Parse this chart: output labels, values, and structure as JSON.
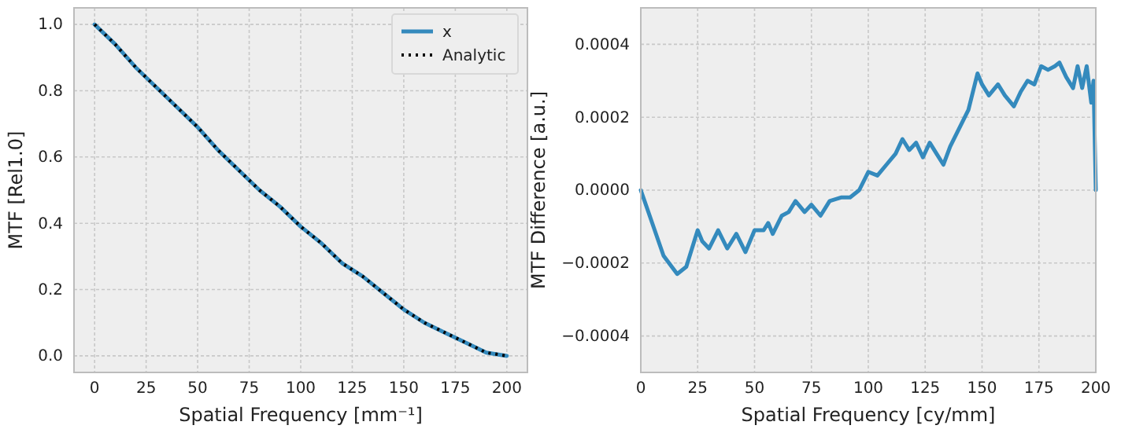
{
  "chart_data": [
    {
      "type": "line",
      "xlabel": "Spatial Frequency [mm⁻¹]",
      "ylabel": "MTF [Rel1.0]",
      "xlim": [
        -10,
        210
      ],
      "ylim": [
        -0.05,
        1.05
      ],
      "xticks": [
        0,
        25,
        50,
        75,
        100,
        125,
        150,
        175,
        200
      ],
      "yticks": [
        {
          "value": 0,
          "label": "0.0"
        },
        {
          "value": 0.2,
          "label": "0.2"
        },
        {
          "value": 0.4,
          "label": "0.4"
        },
        {
          "value": 0.6,
          "label": "0.6"
        },
        {
          "value": 0.8,
          "label": "0.8"
        },
        {
          "value": 1,
          "label": "1.0"
        }
      ],
      "grid": true,
      "legend": "top right",
      "x": [
        0,
        10,
        20,
        30,
        40,
        50,
        60,
        70,
        80,
        90,
        100,
        110,
        120,
        130,
        140,
        150,
        160,
        170,
        180,
        190,
        200
      ],
      "series": [
        {
          "name": "x",
          "color": "#348abd",
          "line_style": "solid",
          "values": [
            1,
            0.94,
            0.87,
            0.81,
            0.75,
            0.69,
            0.62,
            0.56,
            0.5,
            0.45,
            0.39,
            0.34,
            0.28,
            0.24,
            0.19,
            0.14,
            0.1,
            0.07,
            0.04,
            0.01,
            0
          ]
        },
        {
          "name": "Analytic",
          "color": "#000000",
          "line_style": "dotted",
          "values": [
            1,
            0.94,
            0.87,
            0.81,
            0.75,
            0.69,
            0.62,
            0.56,
            0.5,
            0.45,
            0.39,
            0.34,
            0.28,
            0.24,
            0.19,
            0.14,
            0.1,
            0.07,
            0.04,
            0.01,
            0
          ]
        }
      ]
    },
    {
      "type": "line",
      "xlabel": "Spatial Frequency [cy/mm]",
      "ylabel": "MTF Difference [a.u.]",
      "xlim": [
        0,
        200
      ],
      "ylim": [
        -0.0005,
        0.0005
      ],
      "xticks": [
        0,
        25,
        50,
        75,
        100,
        125,
        150,
        175,
        200
      ],
      "yticks": [
        {
          "value": -0.0004,
          "label": "−0.0004"
        },
        {
          "value": -0.0002,
          "label": "−0.0002"
        },
        {
          "value": 0,
          "label": "0.0000"
        },
        {
          "value": 0.0002,
          "label": "0.0002"
        },
        {
          "value": 0.0004,
          "label": "0.0004"
        }
      ],
      "grid": true,
      "x": [
        0,
        5,
        10,
        16,
        20,
        25,
        27,
        30,
        34,
        38,
        42,
        46,
        50,
        54,
        56,
        58,
        62,
        65,
        68,
        72,
        75,
        79,
        83,
        88,
        92,
        96,
        100,
        104,
        108,
        112,
        115,
        118,
        121,
        124,
        127,
        130,
        133,
        136,
        140,
        144,
        148,
        150,
        153,
        157,
        160,
        164,
        167,
        170,
        173,
        176,
        179,
        182,
        184,
        187,
        190,
        192,
        194,
        196,
        198,
        199,
        200
      ],
      "series": [
        {
          "color": "#348abd",
          "line_style": "solid",
          "values": [
            0,
            -9e-05,
            -0.00018,
            -0.00023,
            -0.00021,
            -0.00011,
            -0.00014,
            -0.00016,
            -0.00011,
            -0.00016,
            -0.00012,
            -0.00017,
            -0.00011,
            -0.00011,
            -9e-05,
            -0.00012,
            -7e-05,
            -6e-05,
            -3e-05,
            -6e-05,
            -4e-05,
            -7e-05,
            -3e-05,
            -2e-05,
            -2e-05,
            0,
            5e-05,
            4e-05,
            7e-05,
            0.0001,
            0.00014,
            0.00011,
            0.00013,
            9e-05,
            0.00013,
            0.0001,
            7e-05,
            0.00012,
            0.00017,
            0.00022,
            0.00032,
            0.00029,
            0.00026,
            0.00029,
            0.00026,
            0.00023,
            0.00027,
            0.0003,
            0.00029,
            0.00034,
            0.00033,
            0.00034,
            0.00035,
            0.00031,
            0.00028,
            0.00034,
            0.00028,
            0.00034,
            0.00024,
            0.0003,
            0
          ]
        }
      ]
    }
  ]
}
